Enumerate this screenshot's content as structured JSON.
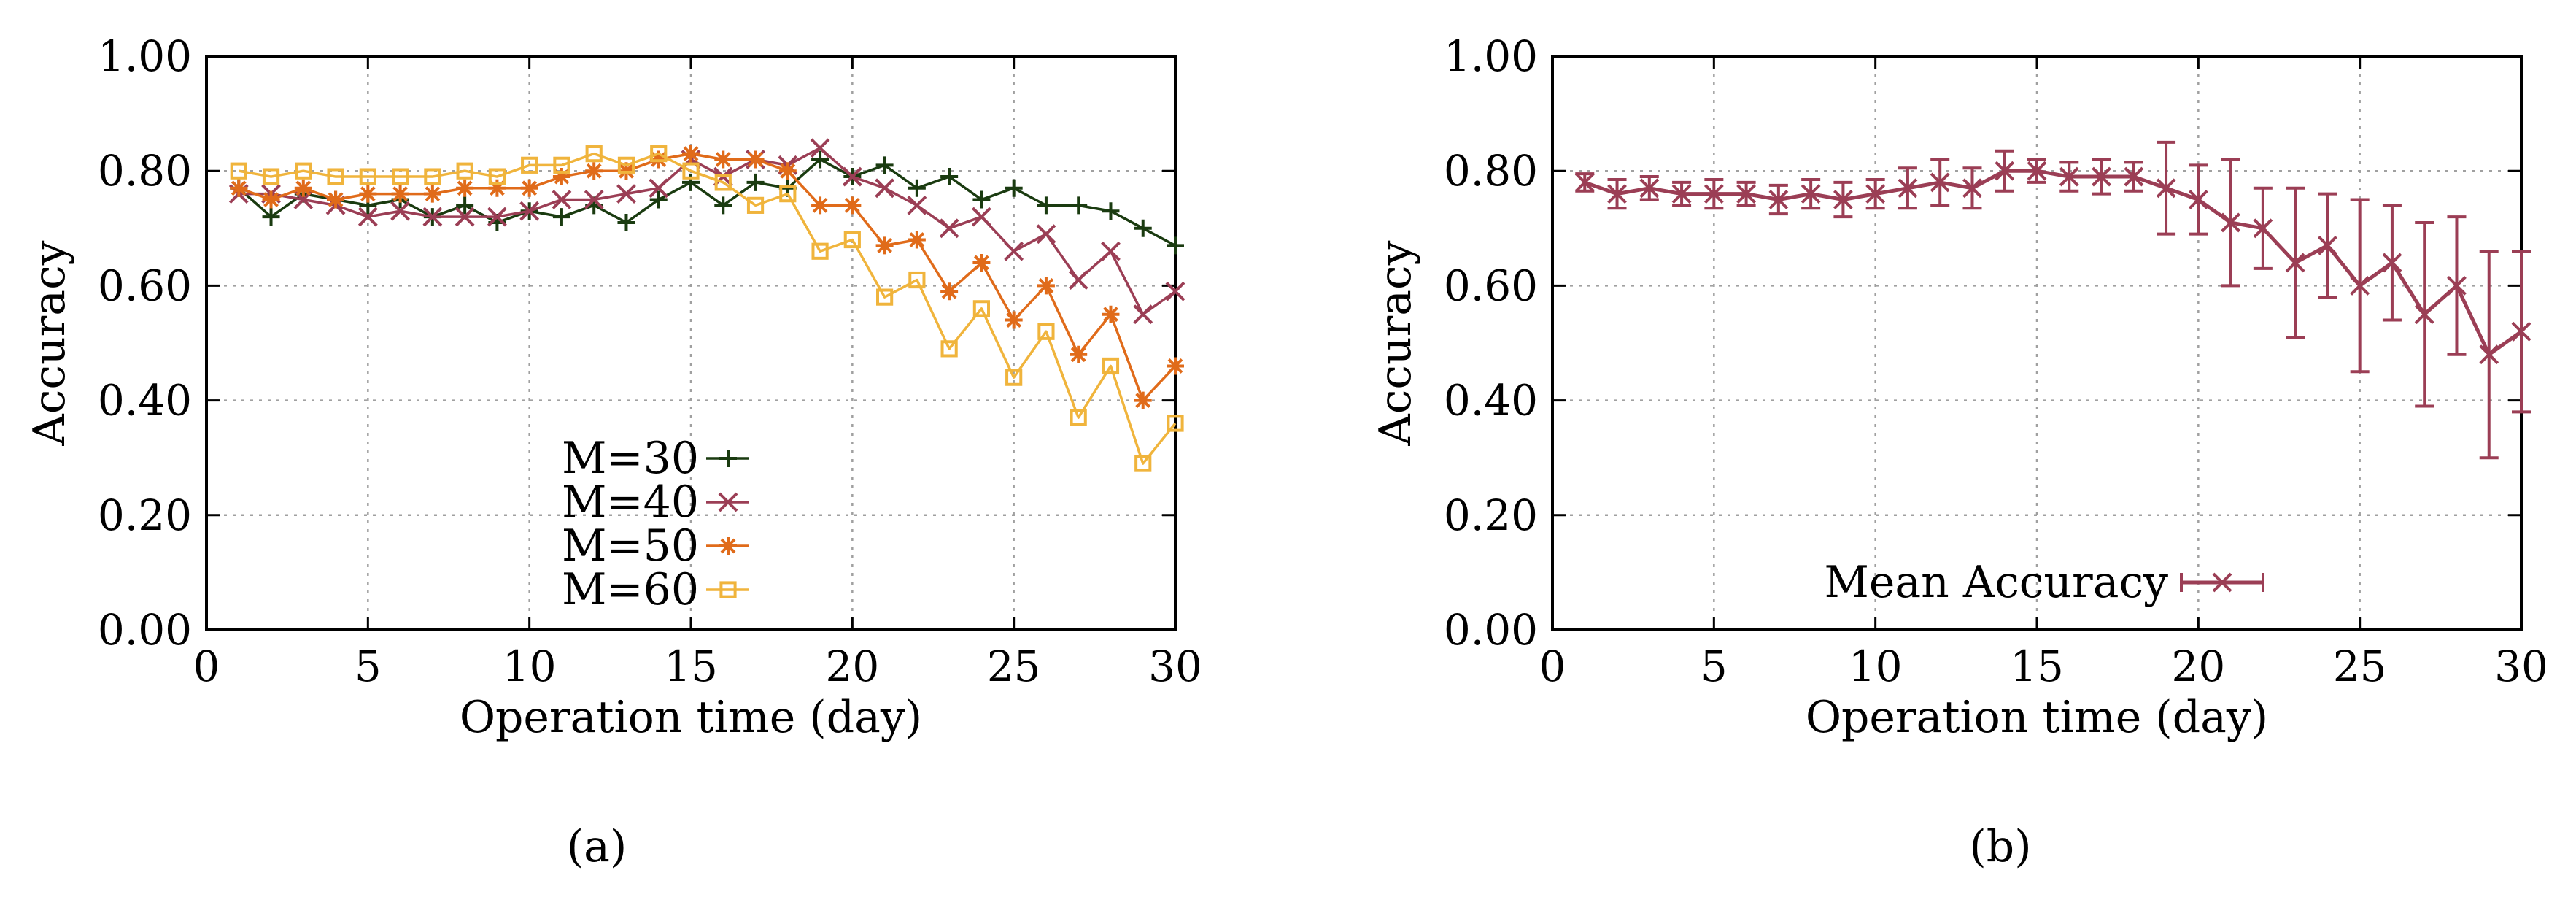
{
  "chart_data": [
    {
      "type": "line",
      "title": "",
      "xlabel": "Operation time (day)",
      "ylabel": "Accuracy",
      "xlim": [
        0,
        30
      ],
      "ylim": [
        0,
        1
      ],
      "xticks": [
        "0",
        "5",
        "10",
        "15",
        "20",
        "25",
        "30"
      ],
      "yticks": [
        "0.00",
        "0.20",
        "0.40",
        "0.60",
        "0.80",
        "1.00"
      ],
      "grid": true,
      "legend_position": "bottom-left",
      "caption": "(a)",
      "x": [
        1,
        2,
        3,
        4,
        5,
        6,
        7,
        8,
        9,
        10,
        11,
        12,
        13,
        14,
        15,
        16,
        17,
        18,
        19,
        20,
        21,
        22,
        23,
        24,
        25,
        26,
        27,
        28,
        29,
        30
      ],
      "series": [
        {
          "name": "M=30",
          "color": "#1a3b10",
          "marker": "plus",
          "values": [
            0.77,
            0.72,
            0.76,
            0.75,
            0.74,
            0.75,
            0.72,
            0.74,
            0.71,
            0.73,
            0.72,
            0.74,
            0.71,
            0.75,
            0.78,
            0.74,
            0.78,
            0.77,
            0.82,
            0.79,
            0.81,
            0.77,
            0.79,
            0.75,
            0.77,
            0.74,
            0.74,
            0.73,
            0.7,
            0.67
          ]
        },
        {
          "name": "M=40",
          "color": "#9b3e55",
          "marker": "x",
          "values": [
            0.76,
            0.76,
            0.75,
            0.74,
            0.72,
            0.73,
            0.72,
            0.72,
            0.72,
            0.73,
            0.75,
            0.75,
            0.76,
            0.77,
            0.82,
            0.79,
            0.82,
            0.81,
            0.84,
            0.79,
            0.77,
            0.74,
            0.7,
            0.72,
            0.66,
            0.69,
            0.61,
            0.66,
            0.55,
            0.59
          ]
        },
        {
          "name": "M=50",
          "color": "#e06b1a",
          "marker": "star",
          "values": [
            0.77,
            0.75,
            0.77,
            0.75,
            0.76,
            0.76,
            0.76,
            0.77,
            0.77,
            0.77,
            0.79,
            0.8,
            0.8,
            0.82,
            0.83,
            0.82,
            0.82,
            0.8,
            0.74,
            0.74,
            0.67,
            0.68,
            0.59,
            0.64,
            0.54,
            0.6,
            0.48,
            0.55,
            0.4,
            0.46
          ]
        },
        {
          "name": "M=60",
          "color": "#f0b43c",
          "marker": "square",
          "values": [
            0.8,
            0.79,
            0.8,
            0.79,
            0.79,
            0.79,
            0.79,
            0.8,
            0.79,
            0.81,
            0.81,
            0.83,
            0.81,
            0.83,
            0.8,
            0.78,
            0.74,
            0.76,
            0.66,
            0.68,
            0.58,
            0.61,
            0.49,
            0.56,
            0.44,
            0.52,
            0.37,
            0.46,
            0.29,
            0.36
          ]
        }
      ]
    },
    {
      "type": "line",
      "title": "",
      "xlabel": "Operation time (day)",
      "ylabel": "Accuracy",
      "xlim": [
        0,
        30
      ],
      "ylim": [
        0,
        1
      ],
      "xticks": [
        "0",
        "5",
        "10",
        "15",
        "20",
        "25",
        "30"
      ],
      "yticks": [
        "0.00",
        "0.20",
        "0.40",
        "0.60",
        "0.80",
        "1.00"
      ],
      "grid": true,
      "legend_position": "bottom-center",
      "caption": "(b)",
      "x": [
        1,
        2,
        3,
        4,
        5,
        6,
        7,
        8,
        9,
        10,
        11,
        12,
        13,
        14,
        15,
        16,
        17,
        18,
        19,
        20,
        21,
        22,
        23,
        24,
        25,
        26,
        27,
        28,
        29,
        30
      ],
      "series": [
        {
          "name": "Mean Accuracy",
          "color": "#9b3e55",
          "marker": "x",
          "values": [
            0.78,
            0.76,
            0.77,
            0.76,
            0.76,
            0.76,
            0.75,
            0.76,
            0.75,
            0.76,
            0.77,
            0.78,
            0.77,
            0.8,
            0.8,
            0.79,
            0.79,
            0.79,
            0.77,
            0.75,
            0.71,
            0.7,
            0.64,
            0.67,
            0.6,
            0.64,
            0.55,
            0.6,
            0.48,
            0.52
          ],
          "error": [
            0.015,
            0.025,
            0.02,
            0.02,
            0.025,
            0.02,
            0.025,
            0.025,
            0.03,
            0.025,
            0.035,
            0.04,
            0.035,
            0.035,
            0.02,
            0.025,
            0.03,
            0.025,
            0.08,
            0.06,
            0.11,
            0.07,
            0.13,
            0.09,
            0.15,
            0.1,
            0.16,
            0.12,
            0.18,
            0.14
          ]
        }
      ]
    }
  ]
}
